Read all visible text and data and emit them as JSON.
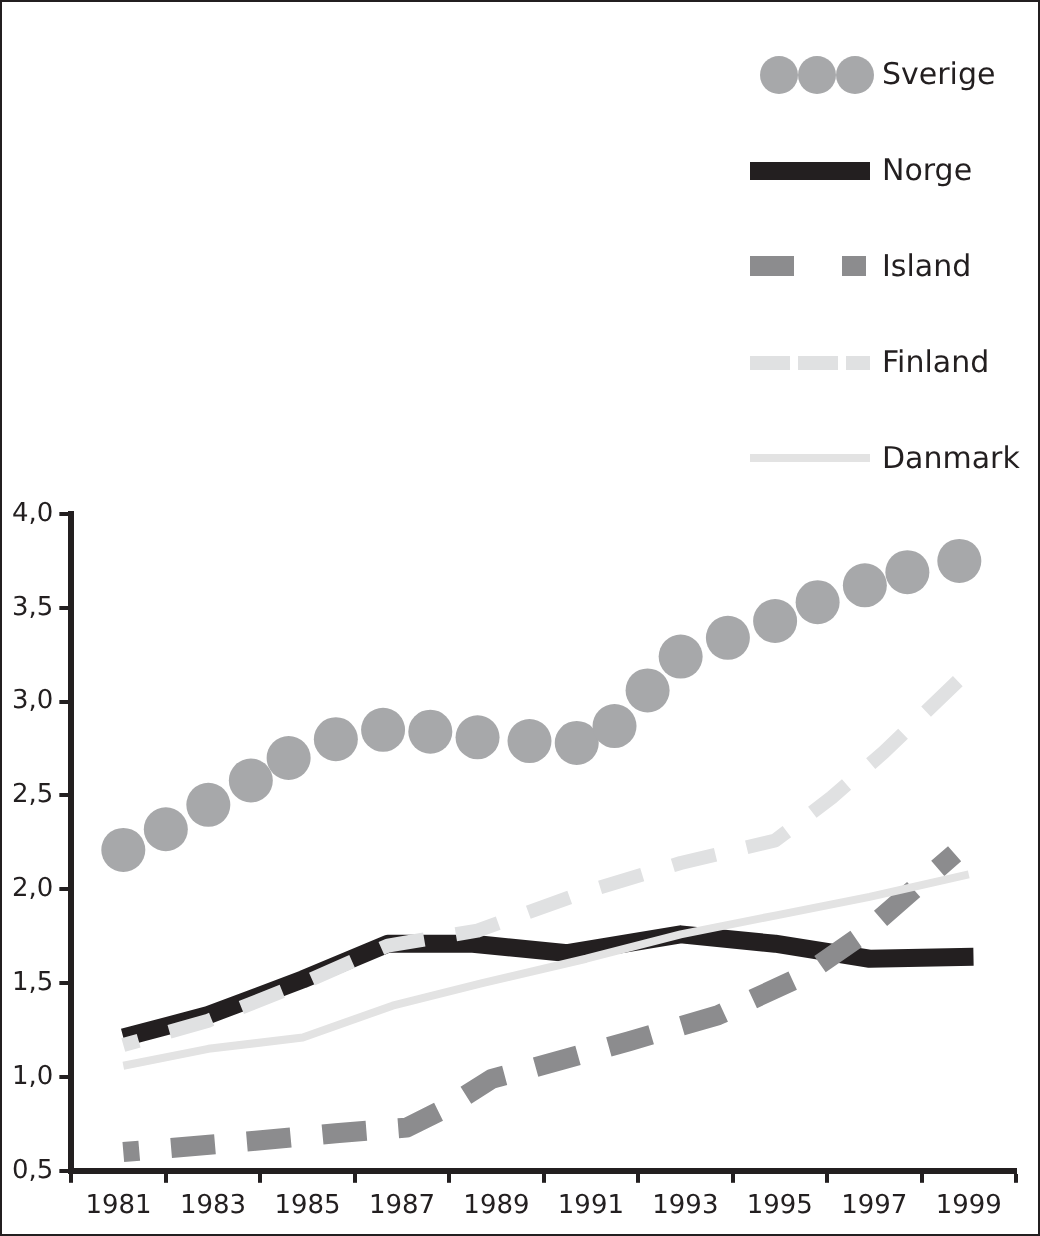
{
  "chart_data": {
    "type": "line",
    "legend": "top right",
    "xlim": [
      1980,
      2000
    ],
    "xticks": [
      {
        "value": 1980,
        "label": null
      },
      {
        "value": 1981,
        "label": "1981"
      },
      {
        "value": 1982,
        "label": null
      },
      {
        "value": 1983,
        "label": "1983"
      },
      {
        "value": 1984,
        "label": null
      },
      {
        "value": 1985,
        "label": "1985"
      },
      {
        "value": 1986,
        "label": null
      },
      {
        "value": 1987,
        "label": "1987"
      },
      {
        "value": 1988,
        "label": null
      },
      {
        "value": 1989,
        "label": "1989"
      },
      {
        "value": 1990,
        "label": null
      },
      {
        "value": 1991,
        "label": "1991"
      },
      {
        "value": 1992,
        "label": null
      },
      {
        "value": 1993,
        "label": "1993"
      },
      {
        "value": 1994,
        "label": null
      },
      {
        "value": 1995,
        "label": "1995"
      },
      {
        "value": 1996,
        "label": null
      },
      {
        "value": 1997,
        "label": "1997"
      },
      {
        "value": 1998,
        "label": null
      },
      {
        "value": 1999,
        "label": "1999"
      },
      {
        "value": 2000,
        "label": null
      }
    ],
    "ylim": [
      0.5,
      4.0
    ],
    "yticks": [
      {
        "value": 0.5,
        "label": "0,5"
      },
      {
        "value": 1.0,
        "label": "1,0"
      },
      {
        "value": 1.5,
        "label": "1,5"
      },
      {
        "value": 2.0,
        "label": "2,0"
      },
      {
        "value": 2.5,
        "label": "2,5"
      },
      {
        "value": 3.0,
        "label": "3,0"
      },
      {
        "value": 3.5,
        "label": "3,5"
      },
      {
        "value": 4.0,
        "label": "4,0"
      }
    ],
    "series": [
      {
        "name": "Sverige",
        "type": "scatter",
        "marker": "circle",
        "color": "#a7a8aa",
        "x": [
          1981.1,
          1982.0,
          1982.9,
          1983.8,
          1984.6,
          1985.6,
          1986.6,
          1987.6,
          1988.6,
          1989.7,
          1990.7,
          1991.5,
          1992.2,
          1992.9,
          1993.9,
          1994.9,
          1995.8,
          1996.8,
          1997.7,
          1998.8
        ],
        "values": [
          2.21,
          2.32,
          2.45,
          2.58,
          2.7,
          2.8,
          2.85,
          2.84,
          2.81,
          2.79,
          2.78,
          2.87,
          3.06,
          3.24,
          3.34,
          3.43,
          3.53,
          3.62,
          3.69,
          3.75
        ]
      },
      {
        "name": "Norge",
        "line_style": "solid",
        "color": "#231f20",
        "x": [
          1981.1,
          1982.9,
          1984.9,
          1986.7,
          1988.5,
          1990.5,
          1992.9,
          1994.9,
          1996.9,
          1999.1
        ],
        "values": [
          1.21,
          1.33,
          1.52,
          1.71,
          1.71,
          1.66,
          1.76,
          1.71,
          1.63,
          1.64
        ]
      },
      {
        "name": "Island",
        "line_style": "dashed",
        "color": "#8c8c8e",
        "x": [
          1981.1,
          1983.9,
          1985.6,
          1987.1,
          1987.9,
          1988.9,
          1989.8,
          1991.8,
          1993.7,
          1995.5,
          1996.7,
          1998.7
        ],
        "values": [
          0.6,
          0.66,
          0.7,
          0.73,
          0.83,
          0.99,
          1.05,
          1.19,
          1.33,
          1.54,
          1.75,
          2.19
        ]
      },
      {
        "name": "Finland",
        "line_style": "dashed",
        "color": "#e0e1e2",
        "x": [
          1981.1,
          1982.9,
          1984.9,
          1986.7,
          1988.6,
          1990.8,
          1992.9,
          1994.9,
          1996.1,
          1997.2,
          1999.1
        ],
        "values": [
          1.17,
          1.3,
          1.5,
          1.7,
          1.78,
          1.98,
          2.14,
          2.26,
          2.49,
          2.73,
          3.19
        ]
      },
      {
        "name": "Danmark",
        "line_style": "solid",
        "color": "#e3e3e3",
        "x": [
          1981.1,
          1982.9,
          1984.9,
          1986.8,
          1988.7,
          1990.9,
          1992.9,
          1994.9,
          1996.9,
          1999.0
        ],
        "values": [
          1.06,
          1.15,
          1.21,
          1.38,
          1.5,
          1.63,
          1.76,
          1.86,
          1.96,
          2.08
        ]
      }
    ]
  }
}
